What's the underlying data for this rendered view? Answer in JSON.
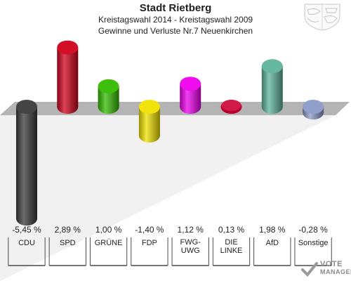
{
  "header": {
    "title": "Stadt Rietberg",
    "subtitle": "Kreistagswahl 2014 - Kreistagswahl 2009",
    "caption": "Gewinne und Verluste Nr.7 Neuenkirchen"
  },
  "watermark": {
    "line1": "VOTE",
    "line2": "MANAGER"
  },
  "chart_data": {
    "type": "bar",
    "unit": "%",
    "categories": [
      "CDU",
      "SPD",
      "GRÜNE",
      "FDP",
      "FWG-\nUWG",
      "DIE\nLINKE",
      "AfD",
      "Sonstige"
    ],
    "values": [
      -5.45,
      2.89,
      1.0,
      -1.4,
      1.12,
      0.13,
      1.98,
      -0.28
    ],
    "value_labels": [
      "-5,45 %",
      "2,89 %",
      "1,00 %",
      "-1,40 %",
      "1,12 %",
      "0,13 %",
      "1,98 %",
      "-0,28 %"
    ],
    "colors": [
      "#3a3a3a",
      "#d0021b",
      "#33bb00",
      "#f0e000",
      "#ee00ee",
      "#cc0033",
      "#5fb49c",
      "#8a9ac8"
    ],
    "baseline": 0,
    "grid": false,
    "legend": "none"
  }
}
